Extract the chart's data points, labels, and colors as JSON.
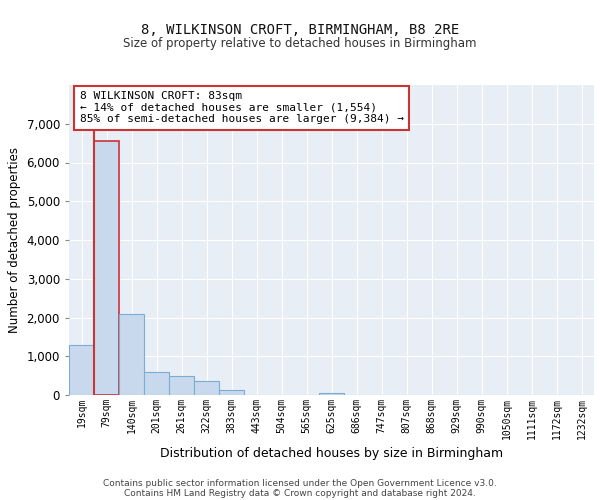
{
  "title1": "8, WILKINSON CROFT, BIRMINGHAM, B8 2RE",
  "title2": "Size of property relative to detached houses in Birmingham",
  "xlabel": "Distribution of detached houses by size in Birmingham",
  "ylabel": "Number of detached properties",
  "annotation_line1": "8 WILKINSON CROFT: 83sqm",
  "annotation_line2": "← 14% of detached houses are smaller (1,554)",
  "annotation_line3": "85% of semi-detached houses are larger (9,384) →",
  "footer1": "Contains HM Land Registry data © Crown copyright and database right 2024.",
  "footer2": "Contains public sector information licensed under the Open Government Licence v3.0.",
  "categories": [
    "19sqm",
    "79sqm",
    "140sqm",
    "201sqm",
    "261sqm",
    "322sqm",
    "383sqm",
    "443sqm",
    "504sqm",
    "565sqm",
    "625sqm",
    "686sqm",
    "747sqm",
    "807sqm",
    "868sqm",
    "929sqm",
    "990sqm",
    "1050sqm",
    "1111sqm",
    "1172sqm",
    "1232sqm"
  ],
  "values": [
    1300,
    6550,
    2100,
    600,
    500,
    370,
    130,
    0,
    0,
    0,
    50,
    0,
    0,
    0,
    0,
    0,
    0,
    0,
    0,
    0,
    0
  ],
  "bar_color": "#c9d9ed",
  "bar_edge_color": "#7aadd4",
  "highlight_bar_index": 1,
  "highlight_edge_color": "#cc3333",
  "vline_color": "#cc3333",
  "vline_bar_index": 1,
  "ylim": [
    0,
    8000
  ],
  "yticks": [
    0,
    1000,
    2000,
    3000,
    4000,
    5000,
    6000,
    7000
  ],
  "background_color": "#ffffff",
  "plot_bg_color": "#e8eef5",
  "grid_color": "#ffffff",
  "annotation_box_color": "#ffffff",
  "annotation_box_edge": "#cc3333"
}
